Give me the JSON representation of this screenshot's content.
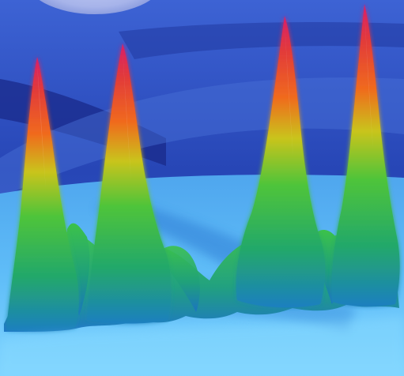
{
  "scene": {
    "kind": "3d-surface-render",
    "colors": {
      "sky_top": "#3a5fd0",
      "sky_mid": "#2a45b8",
      "sky_dark": "#14247a",
      "moon": "#aab7ee",
      "floor_light": "#6bc6ff",
      "floor_mid": "#3f9ce8",
      "floor_deep": "#2a6fc8",
      "peak_tip": "#d81f6a",
      "peak_orange": "#f06a1e",
      "peak_yellow": "#d9c21a",
      "peak_green": "#37c03a",
      "peak_base": "#1e8fb0"
    },
    "peaks": [
      {
        "name": "peak-1",
        "relative_height": 0.84
      },
      {
        "name": "peak-2",
        "relative_height": 0.88
      },
      {
        "name": "peak-3",
        "relative_height": 0.96
      },
      {
        "name": "peak-4",
        "relative_height": 0.99
      }
    ]
  }
}
